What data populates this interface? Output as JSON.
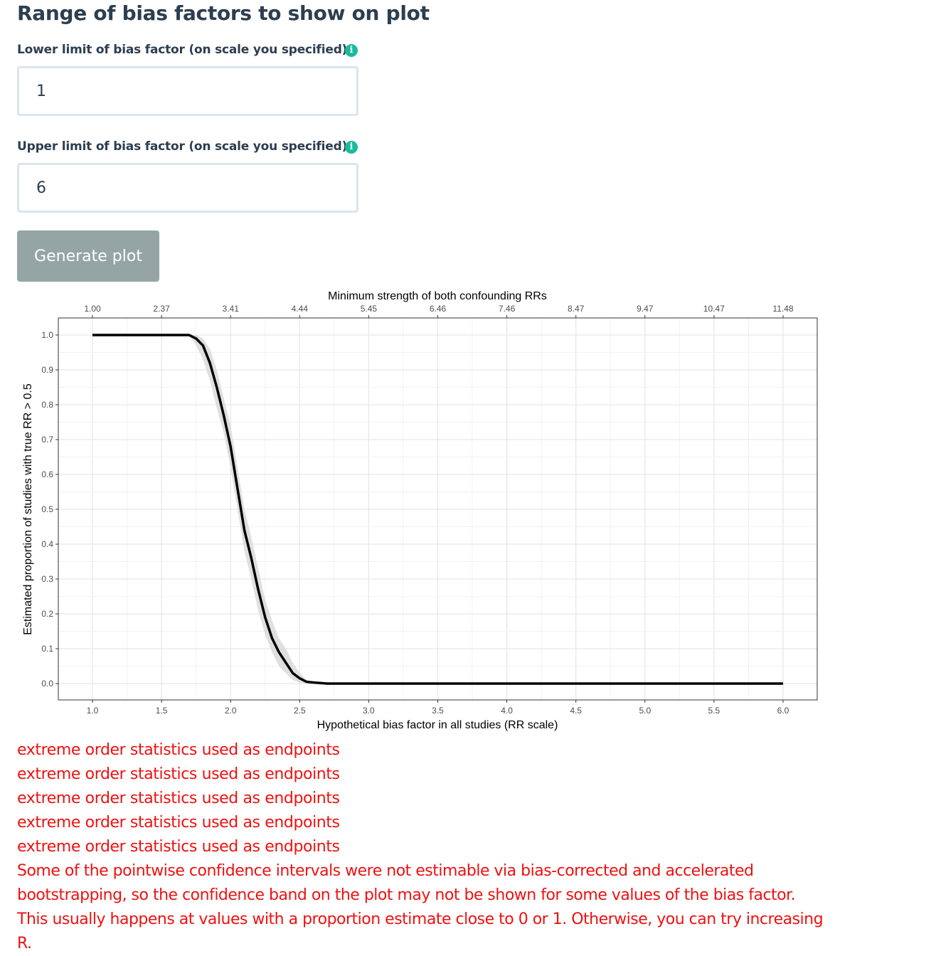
{
  "section_title": "Range of bias factors to show on plot",
  "lower": {
    "label": "Lower limit of bias factor (on scale you specified)",
    "value": "1"
  },
  "upper": {
    "label": "Upper limit of bias factor (on scale you specified)",
    "value": "6"
  },
  "info_icon_glyph": "i",
  "generate_button": "Generate plot",
  "colors": {
    "accent": "#18bc9c",
    "button": "#95a5a6",
    "warning": "#ee1111",
    "text": "#2c3e50"
  },
  "chart_data": {
    "type": "line",
    "top_axis_title": "Minimum strength of both confounding RRs",
    "top_axis_ticks": [
      "1.00",
      "2.37",
      "3.41",
      "4.44",
      "5.45",
      "6.46",
      "7.46",
      "8.47",
      "9.47",
      "10.47",
      "11.48"
    ],
    "xlabel": "Hypothetical bias factor in all studies (RR scale)",
    "ylabel": "Estimated proportion of studies with true RR > 0.5",
    "x_ticks": [
      "1.0",
      "1.5",
      "2.0",
      "2.5",
      "3.0",
      "3.5",
      "4.0",
      "4.5",
      "5.0",
      "5.5",
      "6.0"
    ],
    "y_ticks": [
      "0.0",
      "0.1",
      "0.2",
      "0.3",
      "0.4",
      "0.5",
      "0.6",
      "0.7",
      "0.8",
      "0.9",
      "1.0"
    ],
    "xlim": [
      1.0,
      6.0
    ],
    "ylim": [
      0.0,
      1.0
    ],
    "grid": true,
    "series": [
      {
        "points": [
          [
            1.0,
            1.0
          ],
          [
            1.5,
            1.0
          ],
          [
            1.7,
            1.0
          ],
          [
            1.75,
            0.99
          ],
          [
            1.8,
            0.97
          ],
          [
            1.85,
            0.92
          ],
          [
            1.9,
            0.85
          ],
          [
            1.95,
            0.77
          ],
          [
            2.0,
            0.68
          ],
          [
            2.05,
            0.56
          ],
          [
            2.1,
            0.44
          ],
          [
            2.15,
            0.36
          ],
          [
            2.2,
            0.27
          ],
          [
            2.25,
            0.19
          ],
          [
            2.3,
            0.13
          ],
          [
            2.35,
            0.09
          ],
          [
            2.4,
            0.06
          ],
          [
            2.45,
            0.03
          ],
          [
            2.5,
            0.015
          ],
          [
            2.55,
            0.005
          ],
          [
            2.6,
            0.003
          ],
          [
            2.7,
            0.0
          ],
          [
            3.0,
            0.0
          ],
          [
            4.0,
            0.0
          ],
          [
            5.0,
            0.0
          ],
          [
            6.0,
            0.0
          ]
        ]
      }
    ],
    "band": {
      "upper": [
        [
          1.7,
          1.0
        ],
        [
          1.75,
          1.0
        ],
        [
          1.8,
          0.99
        ],
        [
          1.85,
          0.96
        ],
        [
          1.9,
          0.9
        ],
        [
          1.95,
          0.82
        ],
        [
          2.0,
          0.74
        ],
        [
          2.05,
          0.62
        ],
        [
          2.1,
          0.5
        ],
        [
          2.15,
          0.42
        ],
        [
          2.2,
          0.33
        ],
        [
          2.25,
          0.24
        ],
        [
          2.3,
          0.18
        ],
        [
          2.35,
          0.13
        ],
        [
          2.4,
          0.1
        ],
        [
          2.45,
          0.06
        ],
        [
          2.5,
          0.03
        ],
        [
          2.55,
          0.01
        ],
        [
          2.6,
          0.005
        ],
        [
          2.7,
          0.0
        ]
      ],
      "lower": [
        [
          1.7,
          1.0
        ],
        [
          1.75,
          0.97
        ],
        [
          1.8,
          0.93
        ],
        [
          1.85,
          0.87
        ],
        [
          1.9,
          0.79
        ],
        [
          1.95,
          0.72
        ],
        [
          2.0,
          0.62
        ],
        [
          2.05,
          0.5
        ],
        [
          2.1,
          0.38
        ],
        [
          2.15,
          0.3
        ],
        [
          2.2,
          0.21
        ],
        [
          2.25,
          0.14
        ],
        [
          2.3,
          0.09
        ],
        [
          2.35,
          0.05
        ],
        [
          2.4,
          0.03
        ],
        [
          2.45,
          0.01
        ],
        [
          2.5,
          0.003
        ],
        [
          2.55,
          0.0
        ],
        [
          2.6,
          0.0
        ],
        [
          2.7,
          0.0
        ]
      ]
    }
  },
  "warnings": [
    "extreme order statistics used as endpoints",
    "extreme order statistics used as endpoints",
    "extreme order statistics used as endpoints",
    "extreme order statistics used as endpoints",
    "extreme order statistics used as endpoints"
  ],
  "warning_paragraph": "Some of the pointwise confidence intervals were not estimable via bias-corrected and accelerated bootstrapping, so the confidence band on the plot may not be shown for some values of the bias factor. This usually happens at values with a proportion estimate close to 0 or 1. Otherwise, you can try increasing R."
}
